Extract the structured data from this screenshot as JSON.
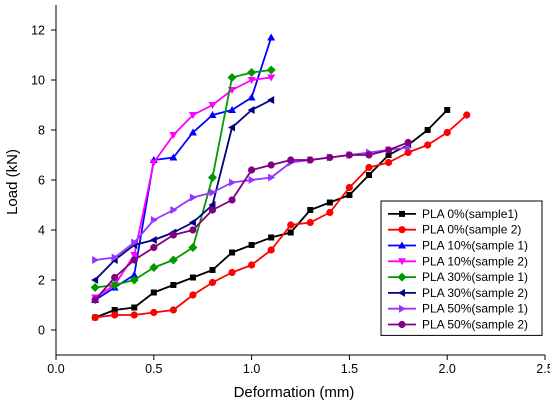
{
  "chart_data": {
    "type": "line",
    "title": "",
    "xlabel": "Deformation (mm)",
    "ylabel": "Load (kN)",
    "xlim": [
      0,
      2.5
    ],
    "ylim": [
      -1,
      13
    ],
    "x_ticks": [
      0.0,
      0.5,
      1.0,
      1.5,
      2.0,
      2.5
    ],
    "x_tick_labels": [
      "0.0",
      "0.5",
      "1.0",
      "1.5",
      "2.0",
      "2.5"
    ],
    "y_ticks": [
      0,
      2,
      4,
      6,
      8,
      10,
      12
    ],
    "y_tick_labels": [
      "0",
      "2",
      "4",
      "6",
      "8",
      "10",
      "12"
    ],
    "grid": false,
    "legend_position": "bottom-right",
    "series": [
      {
        "name": "PLA 0%(sample1)",
        "color": "#000000",
        "marker": "square",
        "x": [
          0.2,
          0.3,
          0.4,
          0.5,
          0.6,
          0.7,
          0.8,
          0.9,
          1.0,
          1.1,
          1.2,
          1.3,
          1.4,
          1.5,
          1.6,
          1.7,
          1.8,
          1.9,
          2.0
        ],
        "y": [
          0.5,
          0.8,
          0.9,
          1.5,
          1.8,
          2.1,
          2.4,
          3.1,
          3.4,
          3.7,
          3.9,
          4.8,
          5.1,
          5.4,
          6.2,
          7.0,
          7.4,
          8.0,
          8.8
        ]
      },
      {
        "name": "PLA 0%(sample 2)",
        "color": "#ff0000",
        "marker": "circle",
        "x": [
          0.2,
          0.3,
          0.4,
          0.5,
          0.6,
          0.7,
          0.8,
          0.9,
          1.0,
          1.1,
          1.2,
          1.3,
          1.4,
          1.5,
          1.6,
          1.7,
          1.8,
          1.9,
          2.0,
          2.1
        ],
        "y": [
          0.5,
          0.6,
          0.6,
          0.7,
          0.8,
          1.4,
          1.9,
          2.3,
          2.6,
          3.2,
          4.2,
          4.3,
          4.7,
          5.7,
          6.5,
          6.7,
          7.1,
          7.4,
          7.9,
          8.6
        ]
      },
      {
        "name": "PLA 10%(sample 1)",
        "color": "#0000ff",
        "marker": "triangle-up",
        "x": [
          0.2,
          0.3,
          0.4,
          0.5,
          0.6,
          0.7,
          0.8,
          0.9,
          1.0,
          1.1
        ],
        "y": [
          1.2,
          1.7,
          2.2,
          6.8,
          6.9,
          7.9,
          8.6,
          8.8,
          9.3,
          11.7
        ]
      },
      {
        "name": "PLA 10%(sample 2)",
        "color": "#ff00ff",
        "marker": "triangle-down",
        "x": [
          0.2,
          0.3,
          0.4,
          0.5,
          0.6,
          0.7,
          0.8,
          0.9,
          1.0,
          1.1
        ],
        "y": [
          1.3,
          1.8,
          3.0,
          6.7,
          7.8,
          8.6,
          9.0,
          9.6,
          10.0,
          10.1
        ]
      },
      {
        "name": "PLA 30%(sample 1)",
        "color": "#009900",
        "marker": "diamond",
        "x": [
          0.2,
          0.3,
          0.4,
          0.5,
          0.6,
          0.7,
          0.8,
          0.9,
          1.0,
          1.1
        ],
        "y": [
          1.7,
          1.8,
          2.0,
          2.5,
          2.8,
          3.3,
          6.1,
          10.1,
          10.3,
          10.4
        ]
      },
      {
        "name": "PLA 30%(sample 2)",
        "color": "#000080",
        "marker": "triangle-left",
        "x": [
          0.2,
          0.3,
          0.4,
          0.5,
          0.6,
          0.7,
          0.8,
          0.9,
          1.0,
          1.1
        ],
        "y": [
          2.0,
          2.8,
          3.4,
          3.6,
          3.9,
          4.3,
          5.0,
          8.1,
          8.8,
          9.2
        ]
      },
      {
        "name": "PLA 50%(sample 1)",
        "color": "#9933ff",
        "marker": "triangle-right",
        "x": [
          0.2,
          0.3,
          0.4,
          0.5,
          0.6,
          0.7,
          0.8,
          0.9,
          1.0,
          1.1,
          1.2,
          1.3,
          1.4,
          1.5,
          1.6,
          1.7,
          1.8
        ],
        "y": [
          2.8,
          2.9,
          3.5,
          4.4,
          4.8,
          5.3,
          5.5,
          5.9,
          6.0,
          6.1,
          6.7,
          6.8,
          6.9,
          7.0,
          7.1,
          7.2,
          7.3
        ]
      },
      {
        "name": "PLA 50%(sample 2)",
        "color": "#800080",
        "marker": "circle",
        "x": [
          0.2,
          0.3,
          0.4,
          0.5,
          0.6,
          0.7,
          0.8,
          0.9,
          1.0,
          1.1,
          1.2,
          1.3,
          1.4,
          1.5,
          1.6,
          1.7,
          1.8
        ],
        "y": [
          1.2,
          2.1,
          2.8,
          3.3,
          3.8,
          4.0,
          4.8,
          5.2,
          6.4,
          6.6,
          6.8,
          6.8,
          6.9,
          7.0,
          7.0,
          7.2,
          7.5
        ]
      }
    ]
  }
}
